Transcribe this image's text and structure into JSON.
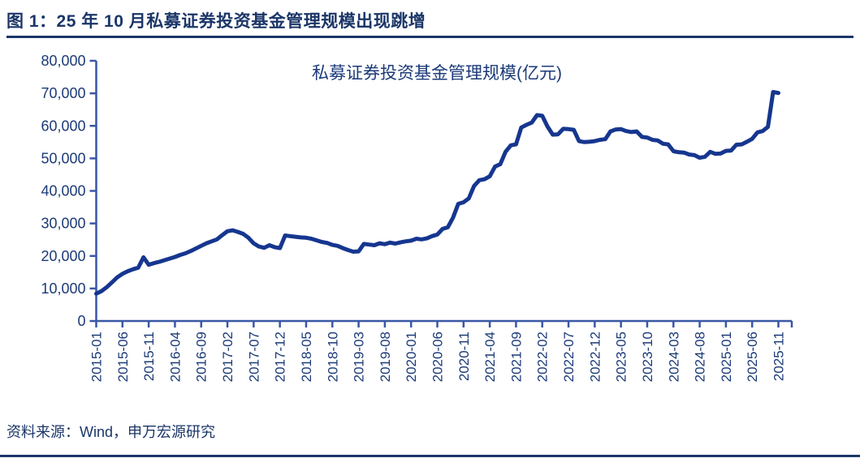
{
  "header": {
    "title": "图 1：25 年 10 月私募证券投资基金管理规模出现跳增"
  },
  "footer": {
    "source": "资料来源：Wind，申万宏源研究"
  },
  "colors": {
    "title_text": "#1b3668",
    "axis_line": "#3a57a5",
    "tick_label": "#1b3a78",
    "series_line": "#16368f",
    "rule": "#1b3668"
  },
  "chart_data": {
    "type": "line",
    "title": "私募证券投资基金管理规模(亿元)",
    "xlabel": "",
    "ylabel": "",
    "grid": false,
    "legend": "none",
    "ylim": [
      0,
      80000
    ],
    "y_ticks": [
      0,
      10000,
      20000,
      30000,
      40000,
      50000,
      60000,
      70000,
      80000
    ],
    "y_tick_labels": [
      "0",
      "10,000",
      "20,000",
      "30,000",
      "40,000",
      "50,000",
      "60,000",
      "70,000",
      "80,000"
    ],
    "x_start_month": "2015-01",
    "x_end_month": "2025-11",
    "x_tick_interval_months": 5,
    "x_tick_labels": [
      "2015-01",
      "2015-06",
      "2015-11",
      "2016-04",
      "2016-09",
      "2017-02",
      "2017-07",
      "2017-12",
      "2018-05",
      "2018-10",
      "2019-03",
      "2019-08",
      "2020-01",
      "2020-06",
      "2020-11",
      "2021-04",
      "2021-09",
      "2022-02",
      "2022-07",
      "2022-12",
      "2023-05",
      "2023-10",
      "2024-03",
      "2024-08",
      "2025-01",
      "2025-06",
      "2025-11"
    ],
    "values": [
      8400,
      9200,
      10400,
      11900,
      13400,
      14500,
      15300,
      15900,
      16400,
      19600,
      17300,
      17800,
      18200,
      18700,
      19200,
      19700,
      20300,
      20800,
      21500,
      22300,
      23100,
      23900,
      24500,
      25100,
      26400,
      27600,
      27900,
      27400,
      26800,
      25600,
      23900,
      22900,
      22500,
      23300,
      22700,
      22400,
      26300,
      26100,
      25900,
      25700,
      25600,
      25300,
      24800,
      24300,
      24000,
      23400,
      23100,
      22400,
      21800,
      21300,
      21400,
      23700,
      23500,
      23300,
      23900,
      23600,
      24100,
      23800,
      24200,
      24500,
      24700,
      25300,
      25100,
      25400,
      26100,
      26600,
      28300,
      28800,
      31800,
      36000,
      36500,
      37700,
      41500,
      43300,
      43600,
      44500,
      47500,
      48200,
      52000,
      54000,
      54300,
      59500,
      60300,
      61000,
      63300,
      63100,
      59800,
      57300,
      57400,
      59100,
      59000,
      58800,
      55300,
      55000,
      55100,
      55300,
      55700,
      55900,
      58300,
      58900,
      59000,
      58400,
      58100,
      58300,
      56600,
      56400,
      55700,
      55500,
      54500,
      54300,
      52200,
      51900,
      51800,
      51200,
      51000,
      50200,
      50500,
      52000,
      51400,
      51500,
      52300,
      52400,
      54200,
      54300,
      55100,
      56000,
      58000,
      58400,
      59700,
      70400,
      70100
    ]
  }
}
